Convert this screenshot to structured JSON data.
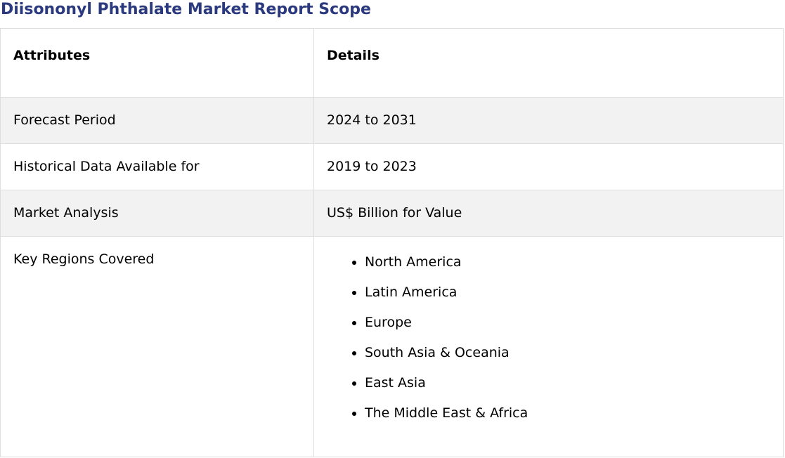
{
  "title": "Diisononyl Phthalate Market Report Scope",
  "table": {
    "headers": {
      "attributes": "Attributes",
      "details": "Details"
    },
    "rows": [
      {
        "attribute": "Forecast Period",
        "detail": "2024 to 2031"
      },
      {
        "attribute": "Historical Data Available for",
        "detail": "2019 to 2023"
      },
      {
        "attribute": "Market Analysis",
        "detail": "US$ Billion for Value"
      }
    ],
    "regions": {
      "attribute": "Key Regions Covered",
      "items": [
        "North America",
        "Latin America",
        "Europe",
        "South Asia & Oceania",
        "East Asia",
        "The Middle East & Africa"
      ]
    }
  },
  "colors": {
    "title": "#2b3a7e",
    "row_shade": "#f2f2f2",
    "border": "#dedede"
  }
}
